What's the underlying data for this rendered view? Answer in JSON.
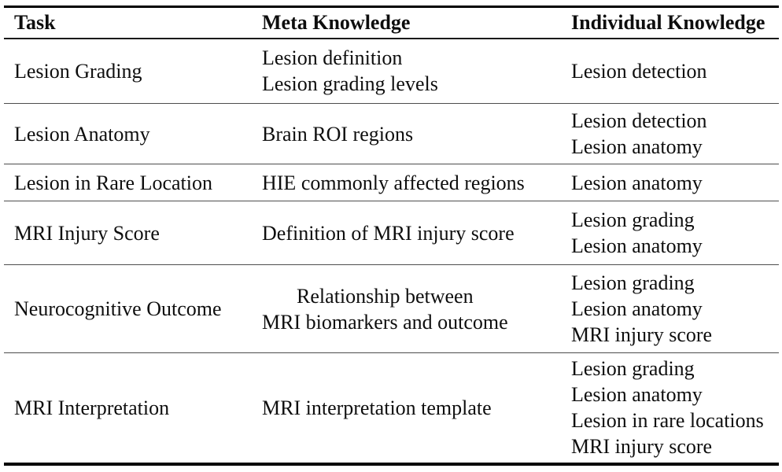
{
  "table": {
    "columns": [
      {
        "label": "Task"
      },
      {
        "label": "Meta Knowledge"
      },
      {
        "label": "Individual Knowledge"
      }
    ],
    "rows": [
      {
        "task": "Lesion Grading",
        "meta": [
          "Lesion definition",
          "Lesion grading levels"
        ],
        "individual": [
          "Lesion detection"
        ]
      },
      {
        "task": "Lesion Anatomy",
        "meta": [
          "Brain ROI regions"
        ],
        "individual": [
          "Lesion detection",
          "Lesion anatomy"
        ]
      },
      {
        "task": "Lesion in Rare Location",
        "meta": [
          "HIE commonly affected regions"
        ],
        "individual": [
          "Lesion anatomy"
        ]
      },
      {
        "task": "MRI Injury Score",
        "meta": [
          "Definition of MRI injury score"
        ],
        "individual": [
          "Lesion grading",
          "Lesion anatomy"
        ]
      },
      {
        "task": "Neurocognitive Outcome",
        "meta": [
          "Relationship between",
          "MRI biomarkers and outcome"
        ],
        "meta_alignment": "center",
        "individual": [
          "Lesion grading",
          "Lesion anatomy",
          "MRI injury score"
        ]
      },
      {
        "task": "MRI Interpretation",
        "meta": [
          "MRI interpretation template"
        ],
        "individual": [
          "Lesion grading",
          "Lesion anatomy",
          "Lesion in rare locations",
          "MRI injury score"
        ]
      }
    ]
  },
  "colors": {
    "background": "#ffffff",
    "text": "#0e0e0e",
    "rule_heavy": "#000000",
    "rule_light": "#4d4d4d"
  }
}
